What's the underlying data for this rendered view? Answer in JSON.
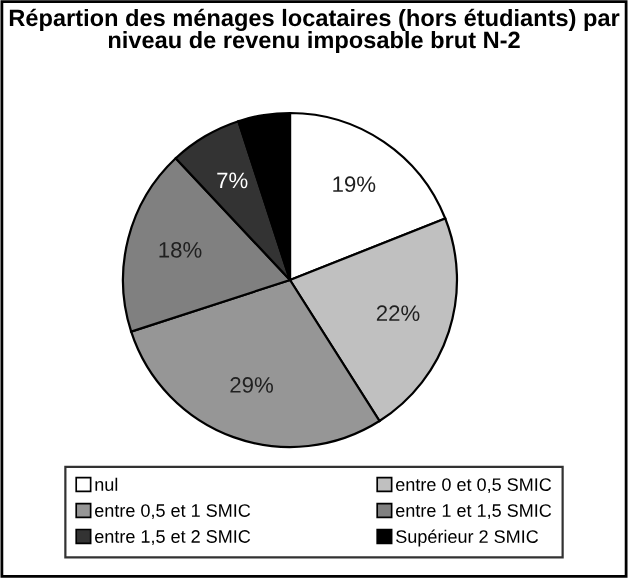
{
  "chart_data": {
    "type": "pie",
    "title": "Répartion des ménages locataires (hors étudiants) par niveau de revenu imposable brut N-2",
    "categories": [
      "nul",
      "entre 0 et 0,5 SMIC",
      "entre 0,5 et 1 SMIC",
      "entre 1 et 1,5 SMIC",
      "entre 1,5 et 2 SMIC",
      "Supérieur 2 SMIC"
    ],
    "values": [
      19,
      22,
      29,
      18,
      7,
      5
    ],
    "colors": [
      "#ffffff",
      "#c0c0c0",
      "#969696",
      "#808080",
      "#333333",
      "#000000"
    ],
    "value_labels": [
      "19%",
      "22%",
      "29%",
      "18%",
      "7%",
      null
    ],
    "legend": "bottom"
  }
}
